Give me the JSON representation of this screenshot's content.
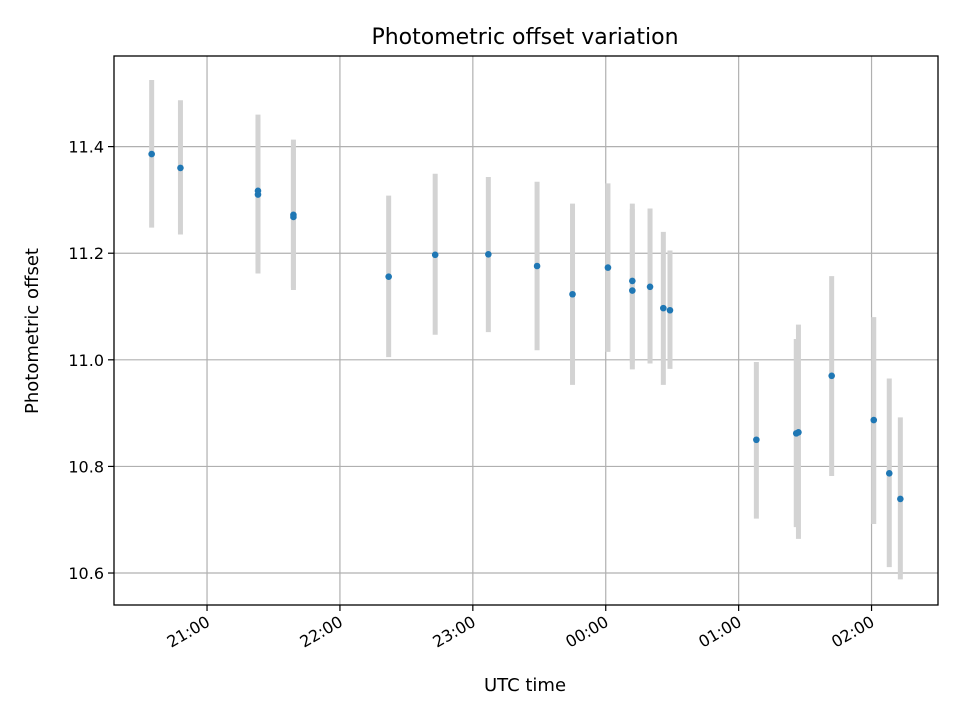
{
  "chart_data": {
    "type": "scatter",
    "title": "Photometric offset variation",
    "xlabel": "UTC time",
    "ylabel": "Photometric offset",
    "grid": true,
    "xlim": [
      "20:18",
      "02:30"
    ],
    "ylim": [
      10.54,
      11.57
    ],
    "x_ticks": [
      "21:00",
      "22:00",
      "23:00",
      "00:00",
      "01:00",
      "02:00"
    ],
    "y_ticks": [
      "10.6",
      "10.8",
      "11.0",
      "11.2",
      "11.4"
    ],
    "colors": {
      "points": "#1f77b4",
      "errorbars": "#d3d3d3"
    },
    "points": [
      {
        "time": "20:35",
        "y": 11.386,
        "ylo": 11.248,
        "yhi": 11.525
      },
      {
        "time": "20:48",
        "y": 11.36,
        "ylo": 11.235,
        "yhi": 11.487
      },
      {
        "time": "21:23",
        "y": 11.31,
        "ylo": 11.162,
        "yhi": 11.46
      },
      {
        "time": "21:23",
        "y": 11.317,
        "ylo": 11.178,
        "yhi": 11.453
      },
      {
        "time": "21:39",
        "y": 11.272,
        "ylo": 11.131,
        "yhi": 11.413
      },
      {
        "time": "21:39",
        "y": 11.268,
        "ylo": 11.135,
        "yhi": 11.395
      },
      {
        "time": "22:22",
        "y": 11.156,
        "ylo": 11.005,
        "yhi": 11.308
      },
      {
        "time": "22:43",
        "y": 11.197,
        "ylo": 11.047,
        "yhi": 11.349
      },
      {
        "time": "23:07",
        "y": 11.198,
        "ylo": 11.052,
        "yhi": 11.343
      },
      {
        "time": "23:29",
        "y": 11.176,
        "ylo": 11.018,
        "yhi": 11.334
      },
      {
        "time": "23:45",
        "y": 11.123,
        "ylo": 10.953,
        "yhi": 11.293
      },
      {
        "time": "00:01",
        "y": 11.173,
        "ylo": 11.015,
        "yhi": 11.331
      },
      {
        "time": "00:12",
        "y": 11.148,
        "ylo": 10.982,
        "yhi": 11.293
      },
      {
        "time": "00:12",
        "y": 11.13,
        "ylo": 10.995,
        "yhi": 11.283
      },
      {
        "time": "00:20",
        "y": 11.137,
        "ylo": 10.993,
        "yhi": 11.284
      },
      {
        "time": "00:26",
        "y": 11.097,
        "ylo": 10.953,
        "yhi": 11.24
      },
      {
        "time": "00:29",
        "y": 11.093,
        "ylo": 10.983,
        "yhi": 11.205
      },
      {
        "time": "01:08",
        "y": 10.85,
        "ylo": 10.702,
        "yhi": 10.996
      },
      {
        "time": "01:26",
        "y": 10.862,
        "ylo": 10.686,
        "yhi": 11.039
      },
      {
        "time": "01:27",
        "y": 10.864,
        "ylo": 10.664,
        "yhi": 11.066
      },
      {
        "time": "01:42",
        "y": 10.97,
        "ylo": 10.782,
        "yhi": 11.157
      },
      {
        "time": "02:01",
        "y": 10.887,
        "ylo": 10.692,
        "yhi": 11.08
      },
      {
        "time": "02:08",
        "y": 10.787,
        "ylo": 10.611,
        "yhi": 10.965
      },
      {
        "time": "02:13",
        "y": 10.739,
        "ylo": 10.588,
        "yhi": 10.892
      }
    ]
  }
}
